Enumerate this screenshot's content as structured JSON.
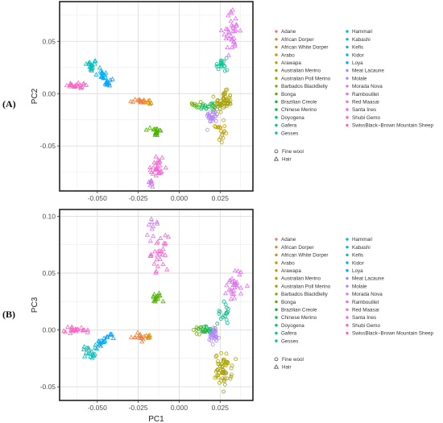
{
  "breeds": [
    {
      "name": "Adane",
      "color": "#F8766D"
    },
    {
      "name": "African Dorper",
      "color": "#EE8042"
    },
    {
      "name": "African White Dorper",
      "color": "#E18A00"
    },
    {
      "name": "Arabo",
      "color": "#D09400"
    },
    {
      "name": "Arawapa",
      "color": "#BE9C00"
    },
    {
      "name": "Australian Merino",
      "color": "#AAA300"
    },
    {
      "name": "Australian Poll Merino",
      "color": "#92AA00"
    },
    {
      "name": "Barbados BlackBelly",
      "color": "#75AF00"
    },
    {
      "name": "Bonga",
      "color": "#4DB400"
    },
    {
      "name": "Brazilian Creole",
      "color": "#00B816"
    },
    {
      "name": "Chinese Merino",
      "color": "#00BB4E"
    },
    {
      "name": "Doyogena",
      "color": "#00BE70"
    },
    {
      "name": "Gafera",
      "color": "#00C08D"
    },
    {
      "name": "Gesses",
      "color": "#00C1A7"
    },
    {
      "name": "Hammari",
      "color": "#00C0BE"
    },
    {
      "name": "Kabashi",
      "color": "#00BDD2"
    },
    {
      "name": "Kefis",
      "color": "#00B7E5"
    },
    {
      "name": "Kidor",
      "color": "#00AEF5"
    },
    {
      "name": "Loya",
      "color": "#00A2FF"
    },
    {
      "name": "Meat Lacaune",
      "color": "#8B93FF"
    },
    {
      "name": "Molale",
      "color": "#B385FF"
    },
    {
      "name": "Morada Nova",
      "color": "#D078FF"
    },
    {
      "name": "Rambouillet",
      "color": "#E46DF5"
    },
    {
      "name": "Red Maasai",
      "color": "#F265E7"
    },
    {
      "name": "Santa Ines",
      "color": "#FB61D7"
    },
    {
      "name": "Shubi Gemo",
      "color": "#FF62C4"
    },
    {
      "name": "SwissBlack−Brown Mountain Sheep",
      "color": "#FF67A4"
    }
  ],
  "shape_legend": [
    {
      "label": "Fine wool",
      "shape": "circle"
    },
    {
      "label": "Hair",
      "shape": "triangle"
    }
  ],
  "panels": [
    {
      "label": "(A)",
      "xlabel": "PC1",
      "ylabel": "PC2"
    },
    {
      "label": "(B)",
      "xlabel": "PC1",
      "ylabel": "PC3"
    }
  ],
  "chart_data": [
    {
      "type": "scatter",
      "xlabel": "PC1",
      "ylabel": "PC2",
      "xlim": [
        -0.073,
        0.045
      ],
      "ylim": [
        -0.093,
        0.088
      ],
      "xticks": [
        -0.05,
        -0.025,
        0.0,
        0.025
      ],
      "xtick_labels": [
        "-0.050",
        "-0.025",
        "0.000",
        "0.025"
      ],
      "yticks": [
        -0.05,
        0.0,
        0.05
      ],
      "ytick_labels": [
        "-0.05",
        "0.00",
        "0.05"
      ],
      "grid": true,
      "clusters": [
        {
          "group": "Hair",
          "color": "#00C0BE",
          "shape": "triangle",
          "cx": -0.054,
          "cy": 0.027,
          "sx": 0.002,
          "sy": 0.003,
          "n": 18
        },
        {
          "group": "Hair",
          "color": "#00AEF5",
          "shape": "triangle",
          "cx": -0.047,
          "cy": 0.017,
          "sx": 0.002,
          "sy": 0.003,
          "n": 14
        },
        {
          "group": "Hair",
          "color": "#00A2FF",
          "shape": "triangle",
          "cx": -0.043,
          "cy": 0.011,
          "sx": 0.0015,
          "sy": 0.002,
          "n": 10
        },
        {
          "group": "Hair",
          "color": "#FF62C4",
          "shape": "triangle",
          "cx": -0.061,
          "cy": 0.008,
          "sx": 0.004,
          "sy": 0.0015,
          "n": 22
        },
        {
          "group": "Hair",
          "color": "#EE8042",
          "shape": "triangle",
          "cx": -0.025,
          "cy": -0.007,
          "sx": 0.0025,
          "sy": 0.0012,
          "n": 14
        },
        {
          "group": "Hair",
          "color": "#E18A00",
          "shape": "triangle",
          "cx": -0.019,
          "cy": -0.008,
          "sx": 0.0015,
          "sy": 0.001,
          "n": 6
        },
        {
          "group": "Hair",
          "color": "#4DB400",
          "shape": "triangle",
          "cx": -0.014,
          "cy": -0.036,
          "sx": 0.0015,
          "sy": 0.003,
          "n": 18
        },
        {
          "group": "Hair",
          "color": "#FB61D7",
          "shape": "triangle",
          "cx": -0.014,
          "cy": -0.072,
          "sx": 0.0025,
          "sy": 0.008,
          "n": 30
        },
        {
          "group": "Hair",
          "color": "#D078FF",
          "shape": "triangle",
          "cx": -0.017,
          "cy": -0.085,
          "sx": 0.0015,
          "sy": 0.003,
          "n": 6
        },
        {
          "group": "Fine wool",
          "color": "#00BB4E",
          "shape": "circle",
          "cx": 0.018,
          "cy": -0.012,
          "sx": 0.004,
          "sy": 0.002,
          "n": 22
        },
        {
          "group": "Fine wool",
          "color": "#B385FF",
          "shape": "circle",
          "cx": 0.02,
          "cy": -0.022,
          "sx": 0.0018,
          "sy": 0.003,
          "n": 26
        },
        {
          "group": "Fine wool",
          "color": "#AAA300",
          "shape": "circle",
          "cx": 0.027,
          "cy": -0.008,
          "sx": 0.0025,
          "sy": 0.005,
          "n": 55
        },
        {
          "group": "Fine wool",
          "color": "#BE9C00",
          "shape": "circle",
          "cx": 0.025,
          "cy": -0.037,
          "sx": 0.0015,
          "sy": 0.005,
          "n": 18
        },
        {
          "group": "Fine wool",
          "color": "#00C08D",
          "shape": "circle",
          "cx": 0.026,
          "cy": 0.028,
          "sx": 0.0018,
          "sy": 0.006,
          "n": 18
        },
        {
          "group": "Fine wool",
          "color": "#75AF00",
          "shape": "circle",
          "cx": 0.012,
          "cy": -0.01,
          "sx": 0.002,
          "sy": 0.002,
          "n": 8
        },
        {
          "group": "Hair",
          "color": "#E46DF5",
          "shape": "triangle",
          "cx": 0.032,
          "cy": 0.06,
          "sx": 0.0025,
          "sy": 0.01,
          "n": 35
        }
      ]
    },
    {
      "type": "scatter",
      "xlabel": "PC1",
      "ylabel": "PC3",
      "xlim": [
        -0.073,
        0.045
      ],
      "ylim": [
        -0.062,
        0.106
      ],
      "xticks": [
        -0.05,
        -0.025,
        0.0,
        0.025
      ],
      "xtick_labels": [
        "-0.050",
        "-0.025",
        "0.000",
        "0.025"
      ],
      "yticks": [
        -0.05,
        0.0,
        0.05,
        0.1
      ],
      "ytick_labels": [
        "-0.05",
        "0.00",
        "0.05",
        "0.10"
      ],
      "grid": true,
      "clusters": [
        {
          "group": "Hair",
          "color": "#FF62C4",
          "shape": "triangle",
          "cx": -0.062,
          "cy": 0.0,
          "sx": 0.004,
          "sy": 0.0015,
          "n": 22
        },
        {
          "group": "Hair",
          "color": "#00C0BE",
          "shape": "triangle",
          "cx": -0.055,
          "cy": -0.019,
          "sx": 0.002,
          "sy": 0.003,
          "n": 18
        },
        {
          "group": "Hair",
          "color": "#00AEF5",
          "shape": "triangle",
          "cx": -0.048,
          "cy": -0.012,
          "sx": 0.002,
          "sy": 0.002,
          "n": 12
        },
        {
          "group": "Hair",
          "color": "#00A2FF",
          "shape": "triangle",
          "cx": -0.043,
          "cy": -0.006,
          "sx": 0.0015,
          "sy": 0.0015,
          "n": 8
        },
        {
          "group": "Hair",
          "color": "#EE8042",
          "shape": "triangle",
          "cx": -0.025,
          "cy": -0.006,
          "sx": 0.0025,
          "sy": 0.0015,
          "n": 14
        },
        {
          "group": "Hair",
          "color": "#E18A00",
          "shape": "triangle",
          "cx": -0.019,
          "cy": -0.006,
          "sx": 0.0015,
          "sy": 0.001,
          "n": 6
        },
        {
          "group": "Hair",
          "color": "#4DB400",
          "shape": "triangle",
          "cx": -0.014,
          "cy": 0.028,
          "sx": 0.0015,
          "sy": 0.0025,
          "n": 16
        },
        {
          "group": "Hair",
          "color": "#FB61D7",
          "shape": "triangle",
          "cx": -0.012,
          "cy": 0.068,
          "sx": 0.0025,
          "sy": 0.007,
          "n": 28
        },
        {
          "group": "Hair",
          "color": "#D078FF",
          "shape": "triangle",
          "cx": -0.016,
          "cy": 0.088,
          "sx": 0.0015,
          "sy": 0.006,
          "n": 10
        },
        {
          "group": "Fine wool",
          "color": "#00BB4E",
          "shape": "circle",
          "cx": 0.018,
          "cy": 0.0,
          "sx": 0.004,
          "sy": 0.0015,
          "n": 22
        },
        {
          "group": "Fine wool",
          "color": "#B385FF",
          "shape": "circle",
          "cx": 0.021,
          "cy": -0.006,
          "sx": 0.0018,
          "sy": 0.004,
          "n": 28
        },
        {
          "group": "Fine wool",
          "color": "#AAA300",
          "shape": "circle",
          "cx": 0.027,
          "cy": -0.035,
          "sx": 0.0025,
          "sy": 0.007,
          "n": 60
        },
        {
          "group": "Fine wool",
          "color": "#00C08D",
          "shape": "circle",
          "cx": 0.027,
          "cy": 0.015,
          "sx": 0.0018,
          "sy": 0.005,
          "n": 18
        },
        {
          "group": "Fine wool",
          "color": "#75AF00",
          "shape": "circle",
          "cx": 0.012,
          "cy": 0.0,
          "sx": 0.002,
          "sy": 0.002,
          "n": 8
        },
        {
          "group": "Hair",
          "color": "#E46DF5",
          "shape": "triangle",
          "cx": 0.034,
          "cy": 0.04,
          "sx": 0.0025,
          "sy": 0.008,
          "n": 30
        }
      ]
    }
  ]
}
